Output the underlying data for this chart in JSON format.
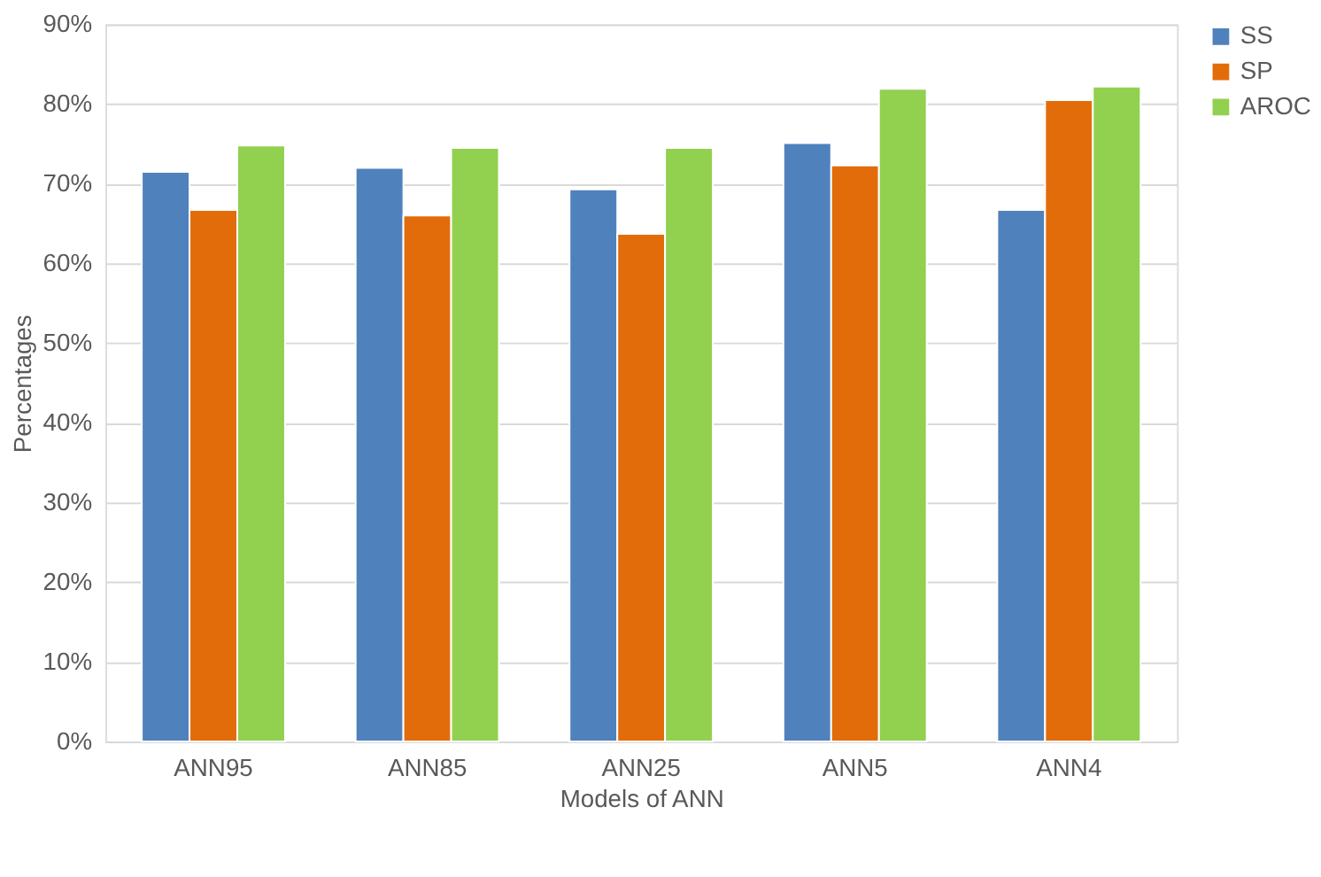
{
  "chart_data": {
    "type": "bar",
    "xlabel": "Models of ANN",
    "ylabel": "Percentages",
    "categories": [
      "ANN95",
      "ANN85",
      "ANN25",
      "ANN5",
      "ANN4"
    ],
    "series": [
      {
        "name": "SS",
        "color": "#4f81bd",
        "values": [
          71.5,
          72.0,
          69.3,
          75.1,
          66.7
        ]
      },
      {
        "name": "SP",
        "color": "#e36c0a",
        "values": [
          66.7,
          66.0,
          63.7,
          72.3,
          80.5
        ]
      },
      {
        "name": "AROC",
        "color": "#92d050",
        "values": [
          74.8,
          74.5,
          74.5,
          81.9,
          82.2
        ]
      }
    ],
    "ylim": [
      0,
      90
    ],
    "yticks": [
      {
        "value": 0,
        "label": "0%"
      },
      {
        "value": 10,
        "label": "10%"
      },
      {
        "value": 20,
        "label": "20%"
      },
      {
        "value": 30,
        "label": "30%"
      },
      {
        "value": 40,
        "label": "40%"
      },
      {
        "value": 50,
        "label": "50%"
      },
      {
        "value": 60,
        "label": "60%"
      },
      {
        "value": 70,
        "label": "70%"
      },
      {
        "value": 80,
        "label": "80%"
      },
      {
        "value": 90,
        "label": "90%"
      }
    ],
    "grid": "y",
    "legend": "right"
  }
}
